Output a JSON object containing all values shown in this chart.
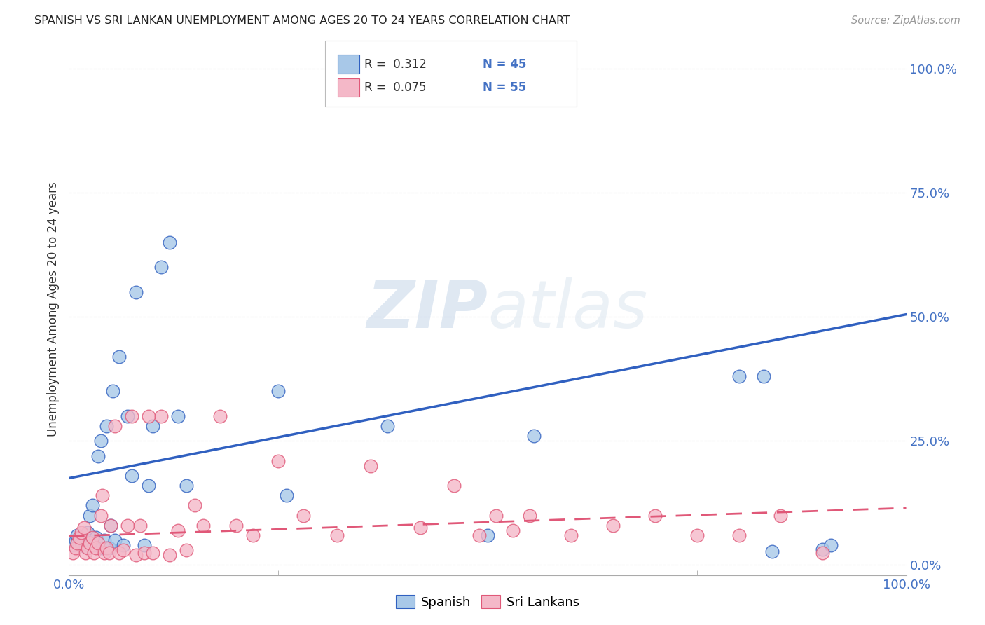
{
  "title": "SPANISH VS SRI LANKAN UNEMPLOYMENT AMONG AGES 20 TO 24 YEARS CORRELATION CHART",
  "source": "Source: ZipAtlas.com",
  "ylabel": "Unemployment Among Ages 20 to 24 years",
  "xlim": [
    0,
    1
  ],
  "ylim": [
    -0.02,
    1.05
  ],
  "ytick_labels": [
    "0.0%",
    "25.0%",
    "50.0%",
    "75.0%",
    "100.0%"
  ],
  "ytick_positions": [
    0.0,
    0.25,
    0.5,
    0.75,
    1.0
  ],
  "blue_color": "#a8c8e8",
  "pink_color": "#f4b8c8",
  "line_blue": "#3060c0",
  "line_pink": "#e05878",
  "background": "#ffffff",
  "blue_line_x": [
    0.0,
    1.0
  ],
  "blue_line_y": [
    0.175,
    0.505
  ],
  "pink_line_x": [
    0.0,
    1.0
  ],
  "pink_line_y": [
    0.058,
    0.115
  ],
  "spanish_x": [
    0.005,
    0.008,
    0.01,
    0.012,
    0.015,
    0.018,
    0.02,
    0.022,
    0.022,
    0.025,
    0.025,
    0.028,
    0.03,
    0.032,
    0.035,
    0.038,
    0.04,
    0.042,
    0.045,
    0.048,
    0.05,
    0.052,
    0.055,
    0.06,
    0.065,
    0.07,
    0.075,
    0.08,
    0.09,
    0.095,
    0.1,
    0.11,
    0.12,
    0.13,
    0.14,
    0.25,
    0.26,
    0.38,
    0.5,
    0.555,
    0.8,
    0.83,
    0.84,
    0.9,
    0.91
  ],
  "spanish_y": [
    0.04,
    0.05,
    0.06,
    0.04,
    0.045,
    0.05,
    0.038,
    0.042,
    0.065,
    0.048,
    0.1,
    0.12,
    0.04,
    0.055,
    0.22,
    0.25,
    0.035,
    0.05,
    0.28,
    0.035,
    0.08,
    0.35,
    0.05,
    0.42,
    0.04,
    0.3,
    0.18,
    0.55,
    0.04,
    0.16,
    0.28,
    0.6,
    0.65,
    0.3,
    0.16,
    0.35,
    0.14,
    0.28,
    0.06,
    0.26,
    0.38,
    0.38,
    0.028,
    0.032,
    0.04
  ],
  "srilanka_x": [
    0.005,
    0.008,
    0.01,
    0.012,
    0.015,
    0.018,
    0.02,
    0.022,
    0.025,
    0.028,
    0.03,
    0.032,
    0.035,
    0.038,
    0.04,
    0.042,
    0.045,
    0.048,
    0.05,
    0.055,
    0.06,
    0.065,
    0.07,
    0.075,
    0.08,
    0.085,
    0.09,
    0.095,
    0.1,
    0.11,
    0.12,
    0.13,
    0.14,
    0.15,
    0.16,
    0.18,
    0.2,
    0.22,
    0.25,
    0.28,
    0.32,
    0.36,
    0.42,
    0.46,
    0.49,
    0.51,
    0.53,
    0.55,
    0.6,
    0.65,
    0.7,
    0.75,
    0.8,
    0.85,
    0.9
  ],
  "srilanka_y": [
    0.025,
    0.035,
    0.045,
    0.055,
    0.065,
    0.075,
    0.025,
    0.035,
    0.045,
    0.055,
    0.025,
    0.035,
    0.045,
    0.1,
    0.14,
    0.025,
    0.035,
    0.025,
    0.08,
    0.28,
    0.025,
    0.03,
    0.08,
    0.3,
    0.02,
    0.08,
    0.025,
    0.3,
    0.025,
    0.3,
    0.02,
    0.07,
    0.03,
    0.12,
    0.08,
    0.3,
    0.08,
    0.06,
    0.21,
    0.1,
    0.06,
    0.2,
    0.075,
    0.16,
    0.06,
    0.1,
    0.07,
    0.1,
    0.06,
    0.08,
    0.1,
    0.06,
    0.06,
    0.1,
    0.025
  ]
}
